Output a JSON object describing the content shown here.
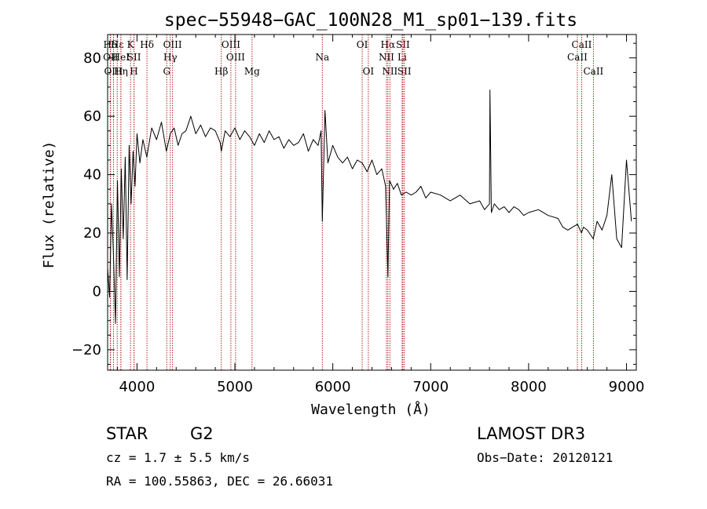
{
  "chart_data": {
    "type": "line",
    "title": "spec−55948−GAC_100N28_M1_sp01−139.fits",
    "xlabel": "Wavelength (Å)",
    "ylabel": "Flux (relative)",
    "xlim": [
      3700,
      9100
    ],
    "ylim": [
      -27,
      88
    ],
    "xticks": [
      4000,
      5000,
      6000,
      7000,
      8000,
      9000
    ],
    "yticks": [
      -20,
      0,
      20,
      40,
      60,
      80
    ],
    "grid": false,
    "series": [
      {
        "name": "flux",
        "color": "#000000",
        "x": [
          3700,
          3720,
          3740,
          3760,
          3780,
          3800,
          3820,
          3840,
          3860,
          3880,
          3900,
          3920,
          3940,
          3960,
          3980,
          4000,
          4030,
          4060,
          4100,
          4150,
          4200,
          4250,
          4300,
          4340,
          4380,
          4420,
          4460,
          4500,
          4550,
          4600,
          4650,
          4700,
          4750,
          4800,
          4850,
          4861,
          4900,
          4950,
          5000,
          5050,
          5100,
          5150,
          5200,
          5250,
          5300,
          5350,
          5400,
          5450,
          5500,
          5550,
          5600,
          5650,
          5700,
          5750,
          5800,
          5850,
          5880,
          5893,
          5920,
          5950,
          6000,
          6050,
          6100,
          6150,
          6200,
          6250,
          6300,
          6350,
          6400,
          6450,
          6500,
          6540,
          6563,
          6580,
          6620,
          6660,
          6700,
          6750,
          6800,
          6850,
          6900,
          6950,
          7000,
          7100,
          7200,
          7300,
          7400,
          7500,
          7550,
          7600,
          7605,
          7620,
          7650,
          7700,
          7750,
          7800,
          7850,
          7900,
          7950,
          8000,
          8100,
          8200,
          8300,
          8350,
          8400,
          8450,
          8500,
          8540,
          8560,
          8600,
          8660,
          8700,
          8750,
          8800,
          8850,
          8900,
          8950,
          9000,
          9050
        ],
        "values": [
          8,
          -2,
          30,
          12,
          -11,
          38,
          5,
          42,
          18,
          46,
          4,
          50,
          30,
          48,
          36,
          54,
          44,
          52,
          46,
          56,
          52,
          58,
          48,
          54,
          56,
          50,
          54,
          55,
          60,
          54,
          57,
          53,
          56,
          55,
          51,
          48,
          55,
          53,
          56,
          52,
          55,
          53,
          50,
          54,
          51,
          55,
          52,
          53,
          49,
          52,
          50,
          51,
          54,
          48,
          52,
          50,
          55,
          24,
          62,
          44,
          50,
          46,
          44,
          46,
          42,
          45,
          44,
          41,
          45,
          40,
          42,
          36,
          5,
          38,
          35,
          37,
          33,
          34,
          33,
          34,
          36,
          32,
          34,
          33,
          31,
          33,
          30,
          31,
          28,
          30,
          69,
          27,
          30,
          28,
          29,
          27,
          29,
          28,
          26,
          27,
          28,
          26,
          25,
          22,
          21,
          22,
          23,
          20,
          22,
          21,
          18,
          24,
          21,
          26,
          40,
          18,
          15,
          45,
          24
        ]
      }
    ],
    "lines": [
      {
        "name": "Hδ",
        "wavelength": 3727,
        "row": 1
      },
      {
        "name": "OII",
        "wavelength": 3730,
        "row": 2
      },
      {
        "name": "OIII",
        "wavelength": 3760,
        "row": 3
      },
      {
        "name": "Hε",
        "wavelength": 3798,
        "row": 1
      },
      {
        "name": "HeI",
        "wavelength": 3835,
        "row": 2
      },
      {
        "name": "Hη",
        "wavelength": 3836,
        "row": 3
      },
      {
        "name": "K",
        "wavelength": 3934,
        "row": 1
      },
      {
        "name": "SII",
        "wavelength": 3970,
        "row": 2
      },
      {
        "name": "H",
        "wavelength": 3969,
        "row": 3
      },
      {
        "name": "Hδ",
        "wavelength": 4102,
        "row": 1
      },
      {
        "name": "OIII",
        "wavelength": 4363,
        "row": 1
      },
      {
        "name": "Hγ",
        "wavelength": 4340,
        "row": 2
      },
      {
        "name": "G",
        "wavelength": 4304,
        "row": 3
      },
      {
        "name": "Hβ",
        "wavelength": 4861,
        "row": 3
      },
      {
        "name": "OIII",
        "wavelength": 4959,
        "row": 1
      },
      {
        "name": "OIII",
        "wavelength": 5007,
        "row": 2
      },
      {
        "name": "Mg",
        "wavelength": 5175,
        "row": 3
      },
      {
        "name": "Na",
        "wavelength": 5893,
        "row": 2
      },
      {
        "name": "OI",
        "wavelength": 6300,
        "row": 1
      },
      {
        "name": "OI",
        "wavelength": 6363,
        "row": 3
      },
      {
        "name": "Hα",
        "wavelength": 6563,
        "row": 1
      },
      {
        "name": "NII",
        "wavelength": 6548,
        "row": 2
      },
      {
        "name": "NII",
        "wavelength": 6583,
        "row": 3
      },
      {
        "name": "SII",
        "wavelength": 6716,
        "row": 1
      },
      {
        "name": "Li",
        "wavelength": 6708,
        "row": 2
      },
      {
        "name": "SII",
        "wavelength": 6731,
        "row": 3
      },
      {
        "name": "CaII",
        "wavelength": 8542,
        "row": 1
      },
      {
        "name": "CaII",
        "wavelength": 8498,
        "row": 2
      },
      {
        "name": "CaII",
        "wavelength": 8662,
        "row": 3
      }
    ],
    "line_color": "#b22222"
  },
  "info": {
    "object_class": "STAR",
    "subclass": "G2",
    "survey": "LAMOST  DR3",
    "cz": "cz = 1.7 ± 5.5 km/s",
    "obs_date": "Obs−Date: 20120121",
    "coords": "RA = 100.55863, DEC =  26.66031"
  }
}
